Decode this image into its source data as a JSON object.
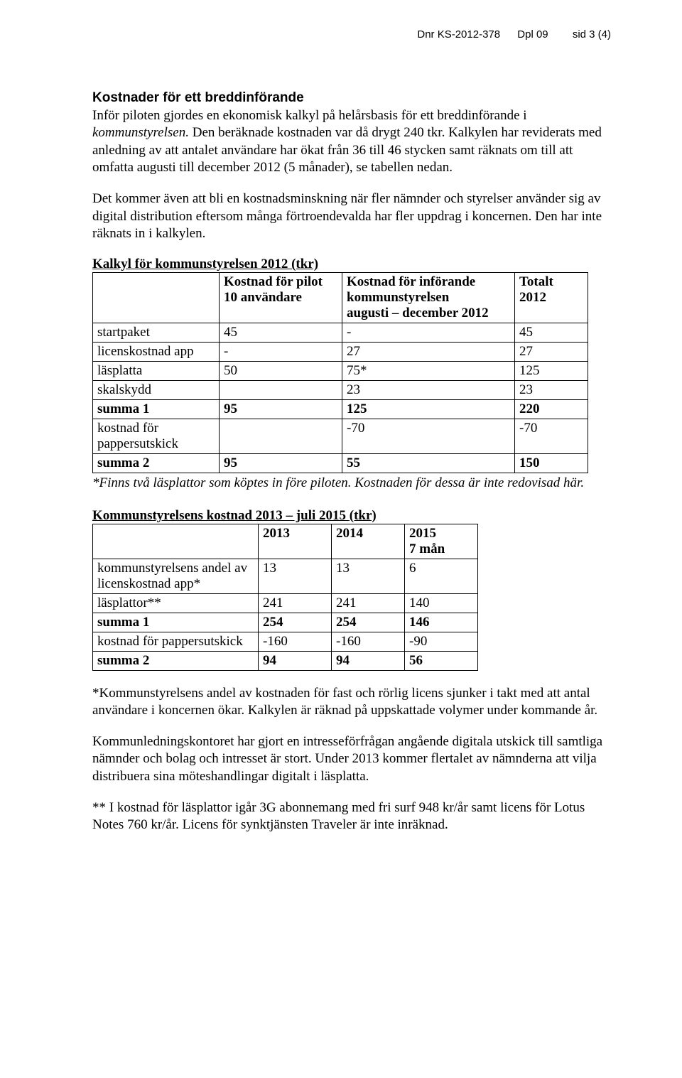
{
  "header": {
    "dnr": "Dnr KS-2012-378",
    "dpl": "Dpl 09",
    "page": "sid 3 (4)"
  },
  "section1": {
    "title": "Kostnader för ett breddinförande",
    "p1a": "Inför piloten gjordes en ekonomisk kalkyl på helårsbasis för ett breddinförande i ",
    "p1b": "kommunstyrelsen.",
    "p1c": " Den beräknade kostnaden var då drygt 240 tkr. Kalkylen har reviderats med anledning av att antalet användare har ökat från 36 till 46 stycken samt räknats om till att omfatta augusti till december 2012 (5 månader), se tabellen nedan.",
    "p2": "Det kommer även att bli en kostnadsminskning när fler nämnder och styrelser använder sig av digital distribution eftersom många förtroendevalda har fler uppdrag i koncernen. Den har inte räknats in i kalkylen."
  },
  "table1": {
    "title": "Kalkyl för kommunstyrelsen 2012 (tkr)",
    "head": {
      "c1": "",
      "c2a": "Kostnad för pilot",
      "c2b": "10 användare",
      "c3a": "Kostnad för införande",
      "c3b": "kommunstyrelsen",
      "c3c": "augusti – december 2012",
      "c4a": "Totalt",
      "c4b": "2012"
    },
    "rows": [
      {
        "c1": "startpaket",
        "c2": "45",
        "c3": "-",
        "c4": "45",
        "bold": false
      },
      {
        "c1": "licenskostnad app",
        "c2": "-",
        "c3": "27",
        "c4": "27",
        "bold": false
      },
      {
        "c1": "läsplatta",
        "c2": "50",
        "c3": "75*",
        "c4": "125",
        "bold": false
      },
      {
        "c1": "skalskydd",
        "c2": "",
        "c3": "23",
        "c4": "23",
        "bold": false
      },
      {
        "c1": "summa 1",
        "c2": "95",
        "c3": "125",
        "c4": "220",
        "bold": true
      },
      {
        "c1": "kostnad för pappersutskick",
        "c2": "",
        "c3": "-70",
        "c4": "-70",
        "bold": false
      },
      {
        "c1": "summa 2",
        "c2": "95",
        "c3": "55",
        "c4": "150",
        "bold": true
      }
    ],
    "caption": "*Finns två läsplattor som köptes in före piloten. Kostnaden för dessa är inte redovisad här."
  },
  "table2": {
    "title": "Kommunstyrelsens kostnad 2013 – juli 2015 (tkr)",
    "head": {
      "c1": "",
      "c2": "2013",
      "c3": "2014",
      "c4a": "2015",
      "c4b": "7 mån"
    },
    "rows": [
      {
        "c1": "kommunstyrelsens andel av licenskostnad app*",
        "c2": "13",
        "c3": "13",
        "c4": "6",
        "bold": false
      },
      {
        "c1": "läsplattor**",
        "c2": "241",
        "c3": "241",
        "c4": "140",
        "bold": false
      },
      {
        "c1": "summa 1",
        "c2": "254",
        "c3": "254",
        "c4": "146",
        "bold": true
      },
      {
        "c1": "kostnad för pappersutskick",
        "c2": "-160",
        "c3": "-160",
        "c4": "-90",
        "bold": false
      },
      {
        "c1": "summa 2",
        "c2": "94",
        "c3": "94",
        "c4": "56",
        "bold": true
      }
    ]
  },
  "footer": {
    "p1": "*Kommunstyrelsens andel av kostnaden för fast och rörlig licens sjunker i takt med att antal användare i koncernen ökar. Kalkylen är räknad på uppskattade volymer under kommande år.",
    "p2": "Kommunledningskontoret har gjort en intresseförfrågan angående digitala utskick till samtliga nämnder och bolag och intresset är stort. Under 2013 kommer flertalet av nämnderna att vilja distribuera sina möteshandlingar digitalt i läsplatta.",
    "p3": "** I kostnad för läsplattor igår 3G abonnemang med fri surf 948 kr/år samt licens för Lotus Notes 760 kr/år. Licens för synktjänsten Traveler är inte inräknad."
  }
}
